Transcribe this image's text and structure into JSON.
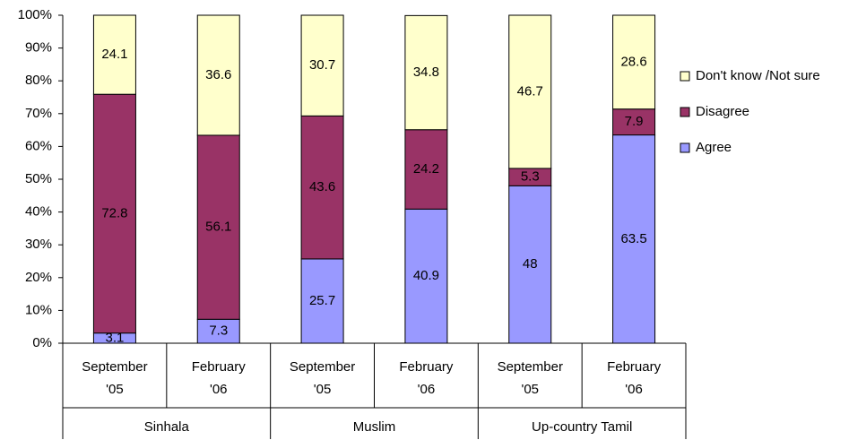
{
  "chart_data": {
    "type": "stacked_bar",
    "categories": [
      [
        "September",
        "'05"
      ],
      [
        "February",
        "'06"
      ],
      [
        "September",
        "'05"
      ],
      [
        "February",
        "'06"
      ],
      [
        "September",
        "'05"
      ],
      [
        "February",
        "'06"
      ]
    ],
    "groups": [
      "Sinhala",
      "Muslim",
      "Up-country Tamil"
    ],
    "series": [
      {
        "name": "Agree",
        "color": "#9999ff",
        "values": [
          3.1,
          7.3,
          25.7,
          40.9,
          48,
          63.5
        ]
      },
      {
        "name": "Disagree",
        "color": "#993366",
        "values": [
          72.8,
          56.1,
          43.6,
          24.2,
          5.3,
          7.9
        ]
      },
      {
        "name": "Don't know /Not sure",
        "color": "#ffffcc",
        "values": [
          24.1,
          36.6,
          30.7,
          34.8,
          46.7,
          28.6
        ]
      }
    ],
    "ylim": [
      0,
      100
    ],
    "yticks": [
      {
        "value": 0,
        "label": "0%"
      },
      {
        "value": 10,
        "label": "10%"
      },
      {
        "value": 20,
        "label": "20%"
      },
      {
        "value": 30,
        "label": "30%"
      },
      {
        "value": 40,
        "label": "40%"
      },
      {
        "value": 50,
        "label": "50%"
      },
      {
        "value": 60,
        "label": "60%"
      },
      {
        "value": 70,
        "label": "70%"
      },
      {
        "value": 80,
        "label": "80%"
      },
      {
        "value": 90,
        "label": "90%"
      },
      {
        "value": 100,
        "label": "100%"
      }
    ],
    "legend_position": "right"
  }
}
